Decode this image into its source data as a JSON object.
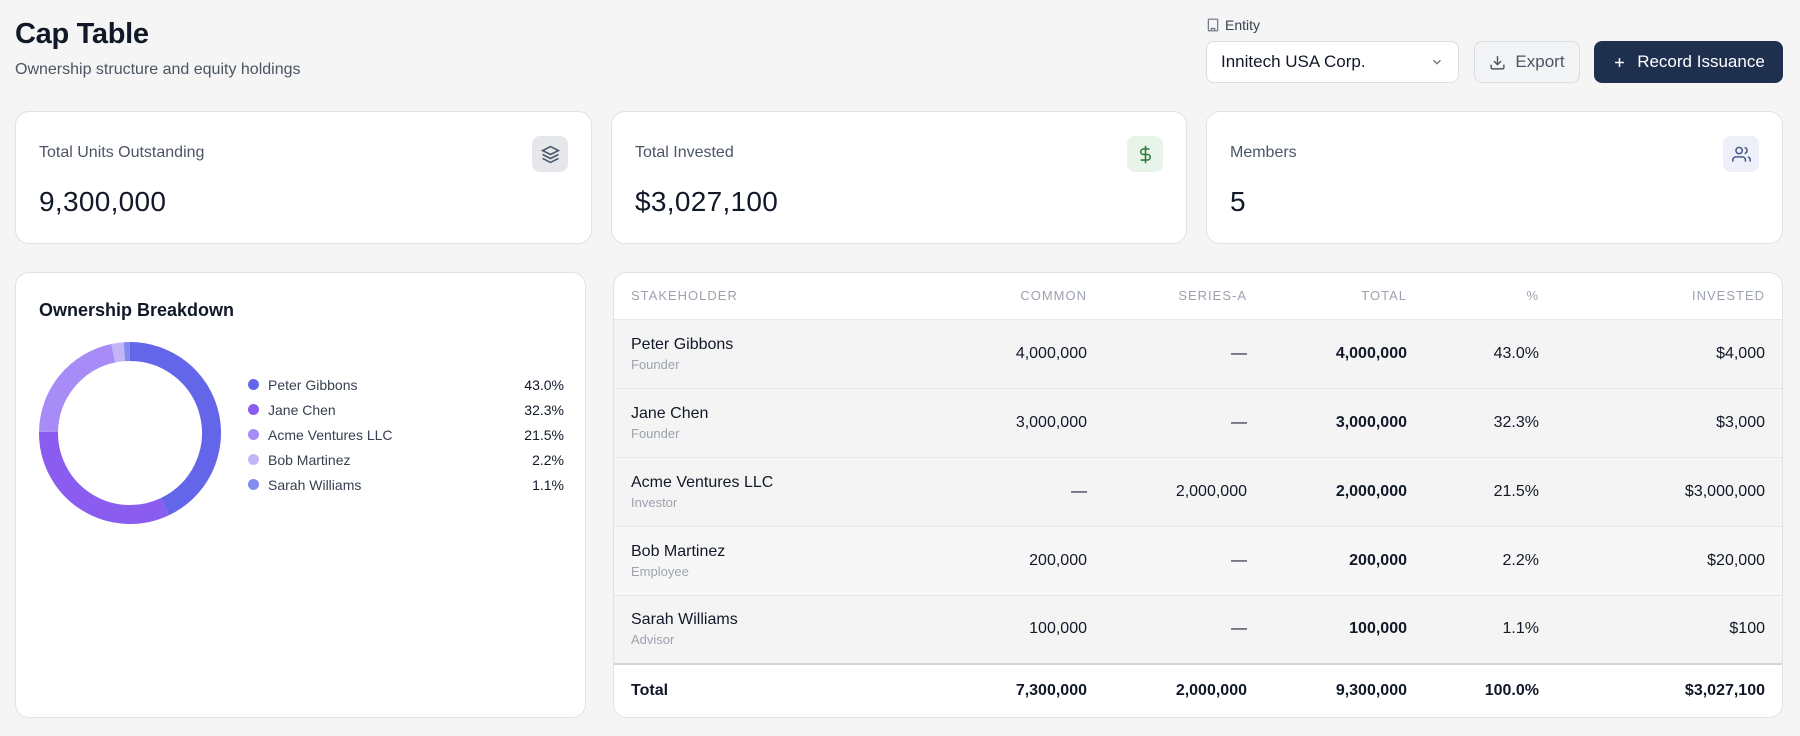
{
  "header": {
    "title": "Cap Table",
    "subtitle": "Ownership structure and equity holdings"
  },
  "entity": {
    "label": "Entity",
    "selected": "Innitech USA Corp."
  },
  "actions": {
    "export_label": "Export",
    "record_label": "Record Issuance"
  },
  "stats": {
    "units": {
      "label": "Total Units Outstanding",
      "value": "9,300,000",
      "icon": "layers-icon"
    },
    "invested": {
      "label": "Total Invested",
      "value": "$3,027,100",
      "icon": "dollar-icon"
    },
    "members": {
      "label": "Members",
      "value": "5",
      "icon": "users-icon"
    }
  },
  "breakdown": {
    "title": "Ownership Breakdown",
    "items": [
      {
        "name": "Peter Gibbons",
        "pct_label": "43.0%",
        "pct": 43.0,
        "color": "#6366e8"
      },
      {
        "name": "Jane Chen",
        "pct_label": "32.3%",
        "pct": 32.3,
        "color": "#8b5cf0"
      },
      {
        "name": "Acme Ventures LLC",
        "pct_label": "21.5%",
        "pct": 21.5,
        "color": "#a78bf7"
      },
      {
        "name": "Bob Martinez",
        "pct_label": "2.2%",
        "pct": 2.2,
        "color": "#c4b5f9"
      },
      {
        "name": "Sarah Williams",
        "pct_label": "1.1%",
        "pct": 1.1,
        "color": "#818cf0"
      }
    ]
  },
  "table": {
    "columns": [
      "Stakeholder",
      "Common",
      "Series-A",
      "Total",
      "%",
      "Invested"
    ],
    "rows": [
      {
        "name": "Peter Gibbons",
        "role": "Founder",
        "common": "4,000,000",
        "series_a": "—",
        "total": "4,000,000",
        "pct": "43.0%",
        "invested": "$4,000"
      },
      {
        "name": "Jane Chen",
        "role": "Founder",
        "common": "3,000,000",
        "series_a": "—",
        "total": "3,000,000",
        "pct": "32.3%",
        "invested": "$3,000"
      },
      {
        "name": "Acme Ventures LLC",
        "role": "Investor",
        "common": "—",
        "series_a": "2,000,000",
        "total": "2,000,000",
        "pct": "21.5%",
        "invested": "$3,000,000"
      },
      {
        "name": "Bob Martinez",
        "role": "Employee",
        "common": "200,000",
        "series_a": "—",
        "total": "200,000",
        "pct": "2.2%",
        "invested": "$20,000"
      },
      {
        "name": "Sarah Williams",
        "role": "Advisor",
        "common": "100,000",
        "series_a": "—",
        "total": "100,000",
        "pct": "1.1%",
        "invested": "$100"
      }
    ],
    "total": {
      "label": "Total",
      "common": "7,300,000",
      "series_a": "2,000,000",
      "total": "9,300,000",
      "pct": "100.0%",
      "invested": "$3,027,100"
    }
  }
}
